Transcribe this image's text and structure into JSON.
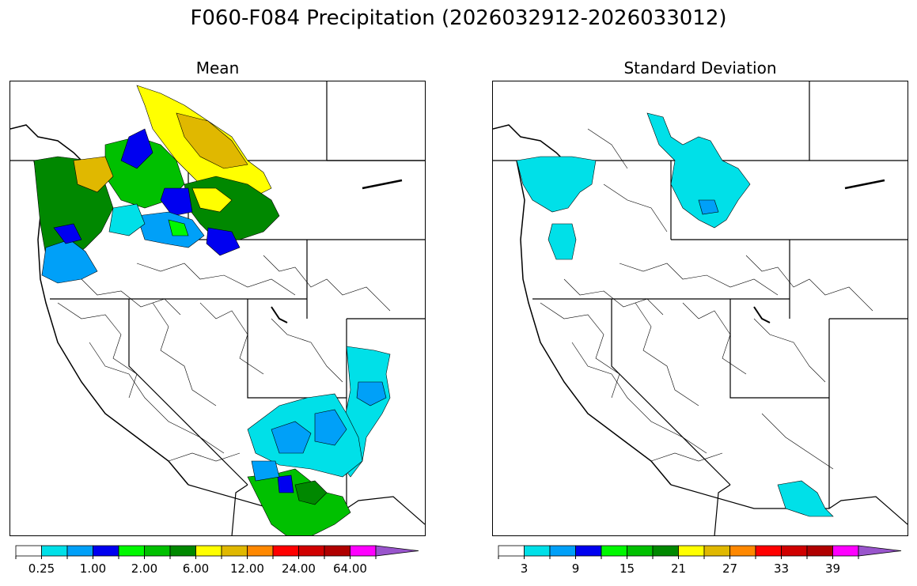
{
  "title": "F060-F084 Precipitation (2026032912-2026033012)",
  "panels": {
    "mean": {
      "title": "Mean",
      "colorbar": {
        "colors": [
          "#ffffff",
          "#00e0e8",
          "#00a0f8",
          "#0000f0",
          "#00f800",
          "#00c000",
          "#008800",
          "#ffff00",
          "#e0b800",
          "#ff8800",
          "#ff0000",
          "#d00000",
          "#b00000",
          "#ff00ff",
          "#9955cc"
        ],
        "tick_labels": [
          "0.25",
          "1.00",
          "2.00",
          "6.00",
          "12.00",
          "24.00",
          "64.00"
        ]
      }
    },
    "std": {
      "title": "Standard Deviation",
      "colorbar": {
        "colors": [
          "#ffffff",
          "#00e0e8",
          "#00a0f8",
          "#0000f0",
          "#00f800",
          "#00c000",
          "#008800",
          "#ffff00",
          "#e0b800",
          "#ff8800",
          "#ff0000",
          "#d00000",
          "#b00000",
          "#ff00ff",
          "#9955cc"
        ],
        "tick_labels": [
          "3",
          "9",
          "15",
          "21",
          "27",
          "33",
          "39"
        ]
      }
    }
  }
}
